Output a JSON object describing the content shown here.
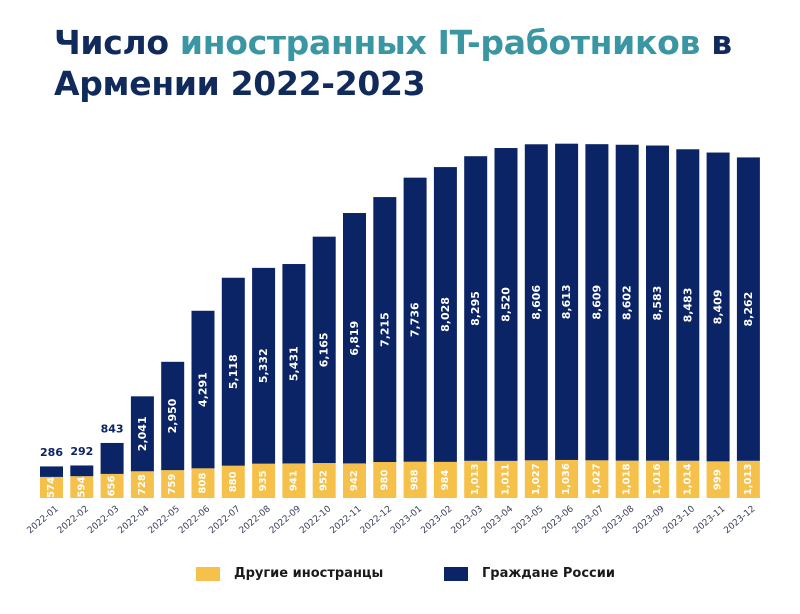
{
  "title": {
    "part1": "Число ",
    "part2": "иностранных IT-работников",
    "part3": " в Армении 2022-2023"
  },
  "colors": {
    "title_dark": "#112a5c",
    "title_accent": "#3a96a3",
    "russian": "#0b2466",
    "other": "#f5c14a",
    "label_light": "#ffffff",
    "label_dark": "#0b2466",
    "tick": "#3a3f5c"
  },
  "chart_data": {
    "type": "bar",
    "stacked": true,
    "categories": [
      "2022-01",
      "2022-02",
      "2022-03",
      "2022-04",
      "2022-05",
      "2022-06",
      "2022-07",
      "2022-08",
      "2022-09",
      "2022-10",
      "2022-11",
      "2022-12",
      "2023-01",
      "2023-02",
      "2023-03",
      "2023-04",
      "2023-05",
      "2023-06",
      "2023-07",
      "2023-08",
      "2023-09",
      "2023-10",
      "2023-11",
      "2023-12"
    ],
    "series": [
      {
        "name": "Другие иностранцы",
        "values": [
          574,
          594,
          656,
          728,
          759,
          808,
          880,
          935,
          941,
          952,
          942,
          980,
          988,
          984,
          1013,
          1011,
          1027,
          1036,
          1027,
          1018,
          1016,
          1014,
          999,
          1013
        ]
      },
      {
        "name": "Граждане России",
        "values": [
          286,
          292,
          843,
          2041,
          2950,
          4291,
          5118,
          5332,
          5431,
          6165,
          6819,
          7215,
          7736,
          8028,
          8295,
          8520,
          8606,
          8613,
          8609,
          8602,
          8583,
          8483,
          8409,
          8262
        ]
      }
    ],
    "value_labels": {
      "other": [
        "574",
        "594",
        "656",
        "728",
        "759",
        "808",
        "880",
        "935",
        "941",
        "952",
        "942",
        "980",
        "988",
        "984",
        "1,013",
        "1,011",
        "1,027",
        "1,036",
        "1,027",
        "1,018",
        "1,016",
        "1,014",
        "999",
        "1,013"
      ],
      "russian": [
        "286",
        "292",
        "843",
        "2,041",
        "2,950",
        "4,291",
        "5,118",
        "5,332",
        "5,431",
        "6,165",
        "6,819",
        "7,215",
        "7,736",
        "8,028",
        "8,295",
        "8,520",
        "8,606",
        "8,613",
        "8,609",
        "8,602",
        "8,583",
        "8,483",
        "8,409",
        "8,262"
      ]
    },
    "xlabel": "",
    "ylabel": "",
    "grid": false,
    "legend_position": "bottom"
  }
}
